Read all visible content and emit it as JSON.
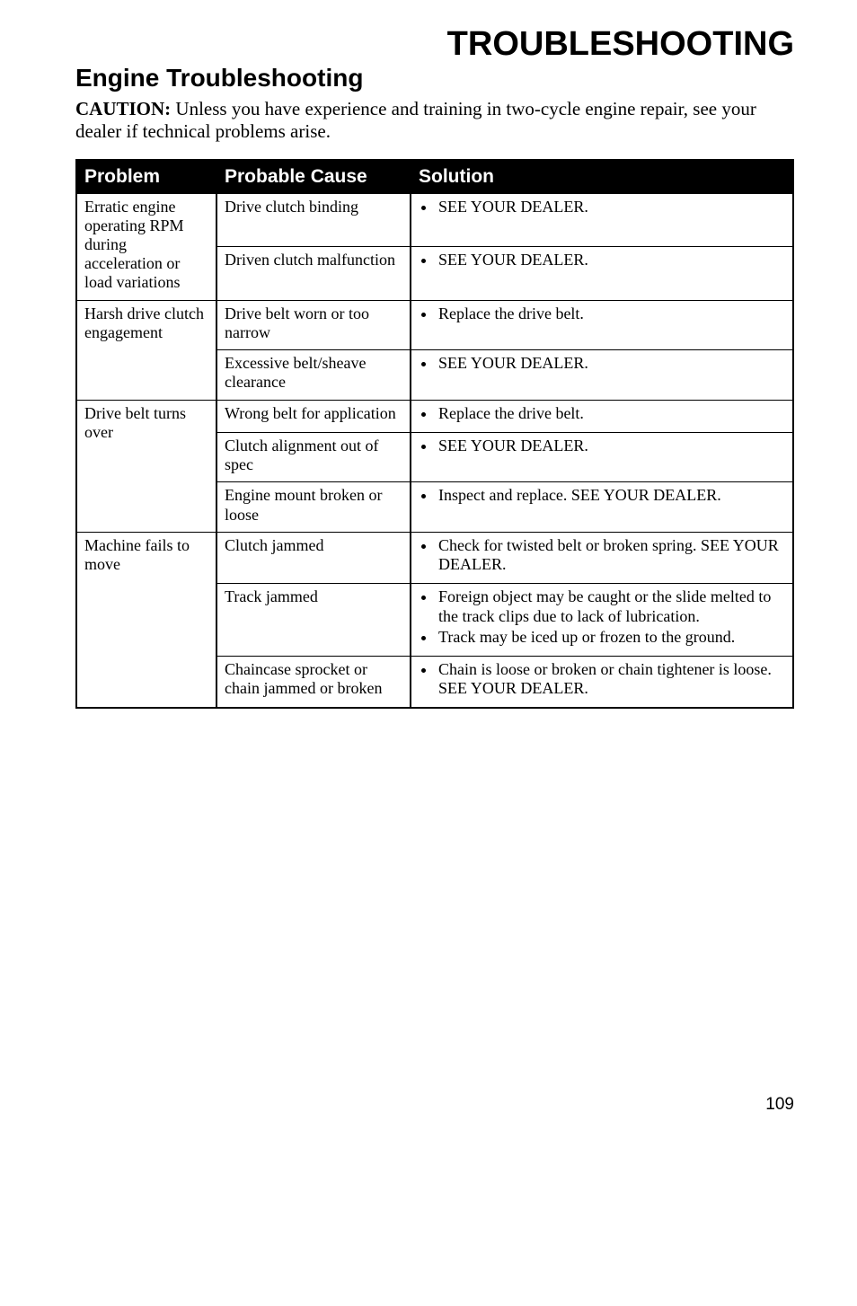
{
  "main_title": "TROUBLESHOOTING",
  "sub_title": "Engine Troubleshooting",
  "caution_lead": "CAUTION:",
  "caution_body": "  Unless you have experience and training in two-cycle engine repair, see your dealer if technical problems arise.",
  "headers": {
    "problem": "Problem",
    "cause": "Probable Cause",
    "solution": "Solution"
  },
  "rows": {
    "r1": {
      "problem": "Erratic engine operating RPM during acceleration or load variations",
      "cause": "Drive clutch binding",
      "sol1": " SEE YOUR DEALER."
    },
    "r2": {
      "cause": "Driven clutch malfunction",
      "sol1": "SEE YOUR DEALER."
    },
    "r3": {
      "problem": "Harsh drive clutch engagement",
      "cause": "Drive belt worn or too narrow",
      "sol1": "Replace the drive belt."
    },
    "r4": {
      "cause": "Excessive belt/sheave clearance",
      "sol1": "SEE YOUR DEALER."
    },
    "r5": {
      "problem": "Drive belt turns over",
      "cause": "Wrong belt for application",
      "sol1": "Replace the drive belt."
    },
    "r6": {
      "cause": "Clutch alignment out of spec",
      "sol1": "SEE YOUR DEALER."
    },
    "r7": {
      "cause": "Engine mount broken or loose",
      "sol1": "Inspect and replace. SEE YOUR DEALER."
    },
    "r8": {
      "problem": "Machine fails to move",
      "cause": "Clutch jammed",
      "sol1": "Check for twisted belt or broken spring. SEE YOUR DEALER."
    },
    "r9": {
      "cause": "Track jammed",
      "sol1": "Foreign object may be caught or the slide melted to the track clips due to lack of lubrication.",
      "sol2": "Track may be iced up or frozen to the ground."
    },
    "r10": {
      "cause": "Chaincase sprocket or chain jammed or broken",
      "sol1": "Chain is loose or broken or chain tightener is loose.  SEE YOUR DEALER."
    }
  },
  "page_number": "109"
}
